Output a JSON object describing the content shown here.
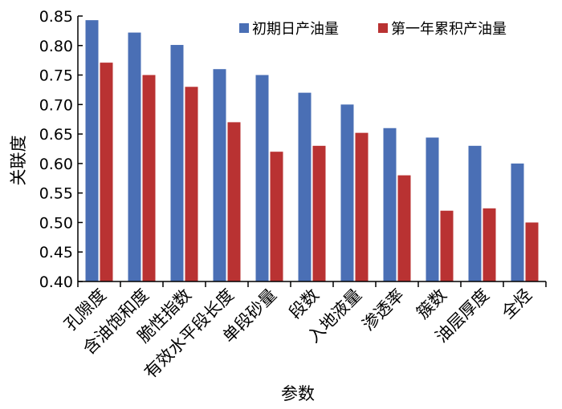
{
  "chart_data": {
    "type": "bar",
    "title": "",
    "xlabel": "参数",
    "ylabel": "关联度",
    "ylim": [
      0.4,
      0.85
    ],
    "yticks": [
      "0.40",
      "0.45",
      "0.50",
      "0.55",
      "0.60",
      "0.65",
      "0.70",
      "0.75",
      "0.80",
      "0.85"
    ],
    "categories": [
      "孔隙度",
      "含油饱和度",
      "脆性指数",
      "有效水平段长度",
      "单段砂量",
      "段数",
      "入地液量",
      "渗透率",
      "簇数",
      "油层厚度",
      "全烃"
    ],
    "series": [
      {
        "name": "初期日产油量",
        "color": "#4a6fb5",
        "values": [
          0.843,
          0.822,
          0.801,
          0.76,
          0.75,
          0.72,
          0.7,
          0.66,
          0.644,
          0.63,
          0.6
        ]
      },
      {
        "name": "第一年累积产油量",
        "color": "#b93232",
        "values": [
          0.771,
          0.75,
          0.73,
          0.67,
          0.62,
          0.63,
          0.652,
          0.58,
          0.52,
          0.524,
          0.5
        ]
      }
    ],
    "legend": "top-right",
    "grid": false
  }
}
